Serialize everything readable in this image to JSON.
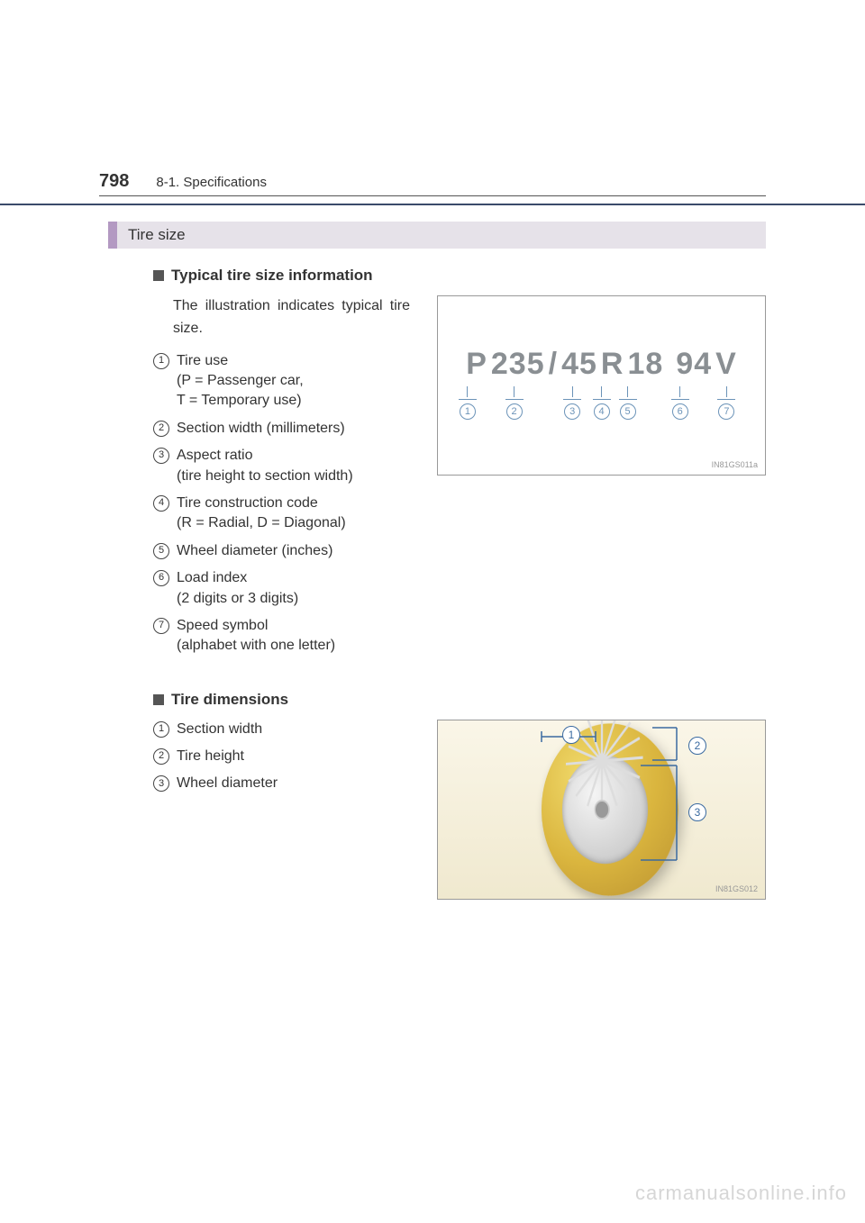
{
  "page_number": "798",
  "section_path": "8-1. Specifications",
  "section_heading": "Tire size",
  "sub1_title": "Typical tire size information",
  "sub1_intro": "The illustration indicates typical tire size.",
  "tire_info_items": [
    {
      "n": "1",
      "title": "Tire use",
      "sub1": "(P = Passenger car,",
      "sub2": "T = Temporary use)"
    },
    {
      "n": "2",
      "title": "Section width (millimeters)"
    },
    {
      "n": "3",
      "title": "Aspect ratio",
      "sub1": "(tire height to section width)"
    },
    {
      "n": "4",
      "title": "Tire construction code",
      "sub1": "(R = Radial, D = Diagonal)"
    },
    {
      "n": "5",
      "title": "Wheel diameter (inches)"
    },
    {
      "n": "6",
      "title": "Load index",
      "sub1": "(2 digits or 3 digits)"
    },
    {
      "n": "7",
      "title": "Speed symbol",
      "sub1": "(alphabet with one letter)"
    }
  ],
  "figure1": {
    "code_parts": [
      "P",
      "235",
      "/",
      "45",
      "R",
      "18",
      "94",
      "V"
    ],
    "indicator_positions_pct": [
      4,
      20,
      40,
      50,
      59,
      77,
      93
    ],
    "indicator_labels": [
      "1",
      "2",
      "3",
      "4",
      "5",
      "6",
      "7"
    ],
    "code_color": "#8a8f93",
    "line_color": "#6b93b8",
    "id": "IN81GS011a"
  },
  "sub2_title": "Tire dimensions",
  "dim_items": [
    {
      "n": "1",
      "title": "Section width"
    },
    {
      "n": "2",
      "title": "Tire height"
    },
    {
      "n": "3",
      "title": "Wheel diameter"
    }
  ],
  "figure2": {
    "bg_top": "#faf6e8",
    "bg_bottom": "#f0e9cf",
    "tire_color": "#dab53e",
    "rim_color": "#cccccc",
    "line_color": "#3a6aa0",
    "labels": [
      "1",
      "2",
      "3"
    ],
    "id": "IN81GS012"
  },
  "watermark": "carmanualsonline.info"
}
